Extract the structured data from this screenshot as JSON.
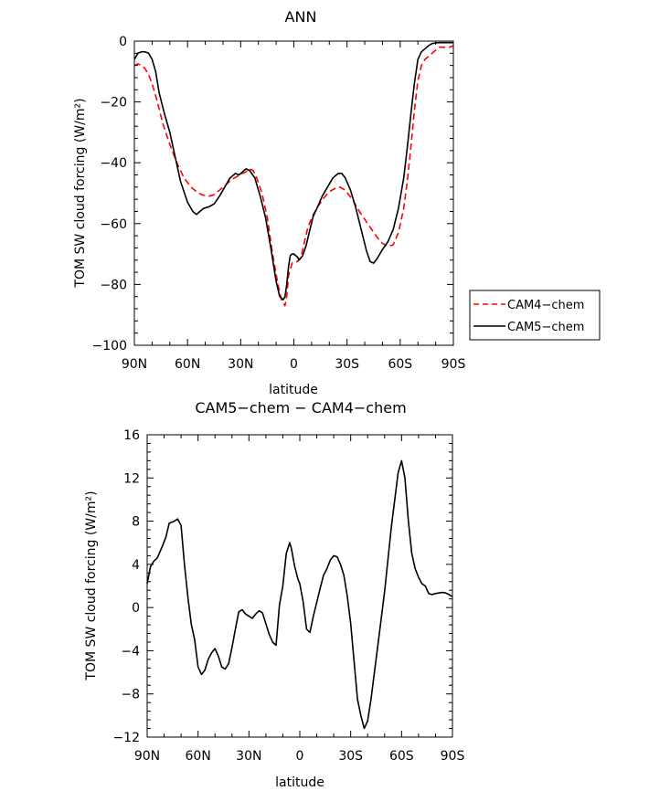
{
  "chart_data": [
    {
      "type": "line",
      "title": "ANN",
      "xlabel": "latitude",
      "ylabel": "TOM SW cloud forcing (W/m²)",
      "xlim": [
        90,
        -90
      ],
      "ylim": [
        -100,
        0
      ],
      "xticks": [
        90,
        60,
        30,
        0,
        -30,
        -60,
        -90
      ],
      "xtick_labels": [
        "90N",
        "60N",
        "30N",
        "0",
        "30S",
        "60S",
        "90S"
      ],
      "yticks": [
        0,
        -20,
        -40,
        -60,
        -80,
        -100
      ],
      "ytick_labels": [
        "0",
        "−20",
        "−40",
        "−60",
        "−80",
        "−100"
      ],
      "legend": {
        "position": "right",
        "entries": [
          "CAM4−chem",
          "CAM5−chem"
        ]
      },
      "series": [
        {
          "name": "CAM4−chem",
          "color": "#ff0000",
          "dash": "dashed",
          "x": [
            90,
            88,
            86,
            84,
            82,
            80,
            77,
            74,
            70,
            66,
            62,
            58,
            55,
            52,
            48,
            45,
            42,
            38,
            35,
            32,
            29,
            27,
            25,
            23,
            21,
            18,
            15,
            12,
            9,
            7,
            5,
            4,
            3,
            1,
            0,
            -2,
            -4,
            -6,
            -8,
            -11,
            -14,
            -17,
            -20,
            -23,
            -26,
            -29,
            -33,
            -37,
            -41,
            -44,
            -47,
            -50,
            -53,
            -56,
            -59,
            -62,
            -64,
            -66,
            -68,
            -70,
            -72,
            -74,
            -76,
            -78,
            -80,
            -82,
            -84,
            -86,
            -88,
            -90
          ],
          "y": [
            -8,
            -7.5,
            -8,
            -9,
            -11,
            -14,
            -20,
            -27,
            -34,
            -40,
            -45,
            -48,
            -49.5,
            -50.5,
            -51,
            -50.5,
            -49,
            -47,
            -45.5,
            -44.5,
            -43.5,
            -43,
            -42,
            -42.5,
            -45,
            -50,
            -58,
            -70,
            -80,
            -85,
            -87,
            -84,
            -77,
            -73,
            -72.5,
            -72.5,
            -71,
            -66,
            -61,
            -57,
            -54,
            -51.5,
            -49.5,
            -48.5,
            -48,
            -49,
            -52,
            -56,
            -59.5,
            -62,
            -64.5,
            -66.5,
            -67.5,
            -67,
            -63,
            -55,
            -46,
            -35,
            -23,
            -13,
            -8,
            -6,
            -5,
            -4,
            -3,
            -2,
            -2,
            -2,
            -2,
            -1.5
          ]
        },
        {
          "name": "CAM5−chem",
          "color": "#000000",
          "dash": "solid",
          "x": [
            90,
            88,
            86,
            84,
            82,
            80,
            78,
            76,
            73,
            70,
            67,
            64,
            60,
            57,
            55,
            53,
            51,
            48,
            45,
            42,
            39,
            36,
            33,
            31,
            29,
            27,
            25,
            22,
            19,
            16,
            13,
            10,
            8,
            6,
            5,
            4,
            3,
            2,
            1,
            0,
            -2,
            -3,
            -5,
            -7,
            -9,
            -11,
            -13,
            -16,
            -19,
            -22,
            -25,
            -27,
            -29,
            -32,
            -35,
            -38,
            -41,
            -43,
            -45,
            -47,
            -50,
            -53,
            -56,
            -59,
            -62,
            -64,
            -66,
            -68,
            -70,
            -72,
            -74,
            -76,
            -78,
            -80,
            -82,
            -84,
            -86,
            -88,
            -90
          ],
          "y": [
            -6,
            -4,
            -3.5,
            -3.5,
            -4,
            -6,
            -10,
            -17,
            -24,
            -30,
            -38,
            -46,
            -53,
            -56,
            -57,
            -56,
            -55,
            -54.5,
            -53.5,
            -51,
            -48,
            -45,
            -43.5,
            -44,
            -43,
            -42,
            -42.5,
            -45,
            -51,
            -58,
            -68,
            -79,
            -84,
            -85,
            -84,
            -80,
            -74,
            -70.5,
            -70,
            -70,
            -71,
            -72,
            -70.5,
            -67,
            -62,
            -57.5,
            -55,
            -51,
            -48,
            -45,
            -43.5,
            -43.5,
            -45,
            -49,
            -55,
            -62,
            -69,
            -72.5,
            -73,
            -71.5,
            -68.5,
            -66,
            -62,
            -55,
            -45,
            -35,
            -24,
            -14,
            -6,
            -3.5,
            -2.5,
            -1.5,
            -0.8,
            -0.6,
            -0.5,
            -0.5,
            -0.5,
            -0.5,
            -0.5
          ]
        }
      ]
    },
    {
      "type": "line",
      "title": "CAM5−chem − CAM4−chem",
      "xlabel": "latitude",
      "ylabel": "TOM SW cloud forcing (W/m²)",
      "xlim": [
        90,
        -90
      ],
      "ylim": [
        -12,
        16
      ],
      "xticks": [
        90,
        60,
        30,
        0,
        -30,
        -60,
        -90
      ],
      "xtick_labels": [
        "90N",
        "60N",
        "30N",
        "0",
        "30S",
        "60S",
        "90S"
      ],
      "yticks": [
        16,
        12,
        8,
        4,
        0,
        -4,
        -8,
        -12
      ],
      "ytick_labels": [
        "16",
        "12",
        "8",
        "4",
        "0",
        "−4",
        "−8",
        "−12"
      ],
      "series": [
        {
          "name": "CAM5−chem − CAM4−chem",
          "color": "#000000",
          "dash": "solid",
          "x": [
            90,
            88,
            86,
            84,
            81,
            79,
            77,
            74,
            72,
            70,
            68,
            66,
            64,
            62,
            60,
            58,
            56,
            54,
            52,
            50,
            48,
            46,
            44,
            42,
            40,
            38,
            36,
            34,
            32,
            30,
            28,
            26,
            24,
            22,
            20,
            18,
            16,
            14,
            12,
            10,
            8,
            6,
            5,
            3,
            1,
            0,
            -2,
            -4,
            -6,
            -8,
            -10,
            -12,
            -14,
            -16,
            -18,
            -20,
            -22,
            -24,
            -26,
            -28,
            -30,
            -32,
            -34,
            -36,
            -38,
            -40,
            -42,
            -44,
            -46,
            -48,
            -50,
            -52,
            -54,
            -56,
            -58,
            -60,
            -62,
            -64,
            -66,
            -68,
            -70,
            -72,
            -74,
            -76,
            -78,
            -80,
            -82,
            -84,
            -86,
            -88,
            -90
          ],
          "y": [
            2.2,
            3.8,
            4.3,
            4.6,
            5.7,
            6.5,
            7.8,
            8.0,
            8.2,
            7.6,
            4.0,
            1.0,
            -1.5,
            -3.0,
            -5.5,
            -6.2,
            -5.8,
            -4.8,
            -4.2,
            -3.8,
            -4.5,
            -5.5,
            -5.7,
            -5.2,
            -3.7,
            -2.0,
            -0.4,
            -0.2,
            -0.6,
            -0.8,
            -1.0,
            -0.6,
            -0.3,
            -0.5,
            -1.5,
            -2.5,
            -3.2,
            -3.5,
            0.2,
            2.0,
            5.0,
            6.0,
            5.5,
            3.8,
            2.6,
            2.2,
            0.5,
            -2.0,
            -2.3,
            -0.8,
            0.5,
            1.8,
            3.0,
            3.6,
            4.4,
            4.8,
            4.7,
            4.0,
            3.0,
            1.0,
            -1.5,
            -5.0,
            -8.5,
            -10.0,
            -11.2,
            -10.5,
            -8.5,
            -6.0,
            -3.5,
            -1.0,
            1.5,
            4.5,
            7.5,
            10.0,
            12.5,
            13.6,
            12.0,
            8.0,
            5.0,
            3.6,
            2.8,
            2.2,
            2.0,
            1.3,
            1.2,
            1.3,
            1.35,
            1.4,
            1.35,
            1.2,
            1.0
          ]
        }
      ]
    }
  ]
}
